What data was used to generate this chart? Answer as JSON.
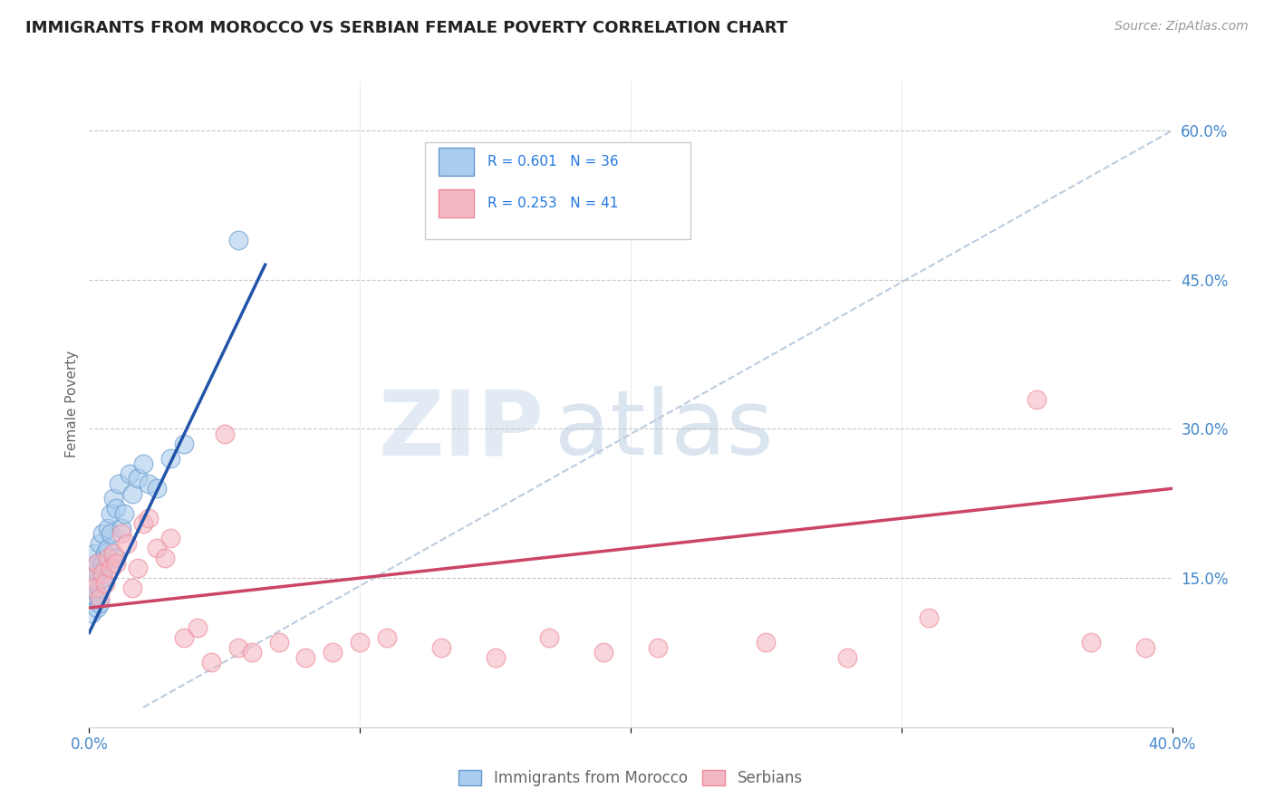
{
  "title": "IMMIGRANTS FROM MOROCCO VS SERBIAN FEMALE POVERTY CORRELATION CHART",
  "source": "Source: ZipAtlas.com",
  "ylabel": "Female Poverty",
  "xlim": [
    0.0,
    0.4
  ],
  "ylim": [
    0.0,
    0.65
  ],
  "xticks": [
    0.0,
    0.1,
    0.2,
    0.3,
    0.4
  ],
  "xtick_labels": [
    "0.0%",
    "",
    "",
    "",
    "40.0%"
  ],
  "yticks_right": [
    0.15,
    0.3,
    0.45,
    0.6
  ],
  "ytick_right_labels": [
    "15.0%",
    "30.0%",
    "45.0%",
    "60.0%"
  ],
  "background_color": "#ffffff",
  "grid_color": "#c8c8c8",
  "title_color": "#222222",
  "axis_label_color": "#666666",
  "tick_color": "#4488cc",
  "watermark_zip": "ZIP",
  "watermark_atlas": "atlas",
  "series1_name": "Immigrants from Morocco",
  "series1_color": "#6699cc",
  "series1_R": "0.601",
  "series1_N": "36",
  "series2_name": "Serbians",
  "series2_color": "#ee8899",
  "series2_R": "0.253",
  "series2_N": "41",
  "blue_dot_color": "#aaccee",
  "pink_dot_color": "#f4b8c4",
  "blue_line_color": "#2255aa",
  "pink_line_color": "#cc4466",
  "dashed_line_color": "#bbccdd",
  "legend_R_color": "#2277dd",
  "morocco_x": [
    0.001,
    0.001,
    0.002,
    0.002,
    0.002,
    0.003,
    0.003,
    0.003,
    0.003,
    0.004,
    0.004,
    0.004,
    0.005,
    0.005,
    0.005,
    0.006,
    0.006,
    0.007,
    0.007,
    0.008,
    0.008,
    0.009,
    0.01,
    0.01,
    0.011,
    0.012,
    0.013,
    0.015,
    0.016,
    0.018,
    0.02,
    0.022,
    0.025,
    0.03,
    0.035,
    0.055
  ],
  "morocco_y": [
    0.115,
    0.13,
    0.145,
    0.16,
    0.175,
    0.12,
    0.135,
    0.155,
    0.165,
    0.125,
    0.14,
    0.185,
    0.15,
    0.165,
    0.195,
    0.16,
    0.175,
    0.2,
    0.18,
    0.215,
    0.195,
    0.23,
    0.17,
    0.22,
    0.245,
    0.2,
    0.215,
    0.255,
    0.235,
    0.25,
    0.265,
    0.245,
    0.24,
    0.27,
    0.285,
    0.49
  ],
  "serbian_x": [
    0.001,
    0.002,
    0.003,
    0.004,
    0.005,
    0.006,
    0.007,
    0.008,
    0.009,
    0.01,
    0.012,
    0.014,
    0.016,
    0.018,
    0.02,
    0.022,
    0.025,
    0.028,
    0.03,
    0.035,
    0.04,
    0.045,
    0.05,
    0.055,
    0.06,
    0.07,
    0.08,
    0.09,
    0.1,
    0.11,
    0.13,
    0.15,
    0.17,
    0.19,
    0.21,
    0.25,
    0.28,
    0.31,
    0.35,
    0.37,
    0.39
  ],
  "serbian_y": [
    0.15,
    0.14,
    0.165,
    0.13,
    0.155,
    0.145,
    0.17,
    0.16,
    0.175,
    0.165,
    0.195,
    0.185,
    0.14,
    0.16,
    0.205,
    0.21,
    0.18,
    0.17,
    0.19,
    0.09,
    0.1,
    0.065,
    0.295,
    0.08,
    0.075,
    0.085,
    0.07,
    0.075,
    0.085,
    0.09,
    0.08,
    0.07,
    0.09,
    0.075,
    0.08,
    0.085,
    0.07,
    0.11,
    0.33,
    0.085,
    0.08
  ],
  "blue_line_x0": 0.0,
  "blue_line_y0": 0.095,
  "blue_line_x1": 0.065,
  "blue_line_y1": 0.465,
  "pink_line_x0": 0.0,
  "pink_line_y0": 0.12,
  "pink_line_x1": 0.4,
  "pink_line_y1": 0.24
}
